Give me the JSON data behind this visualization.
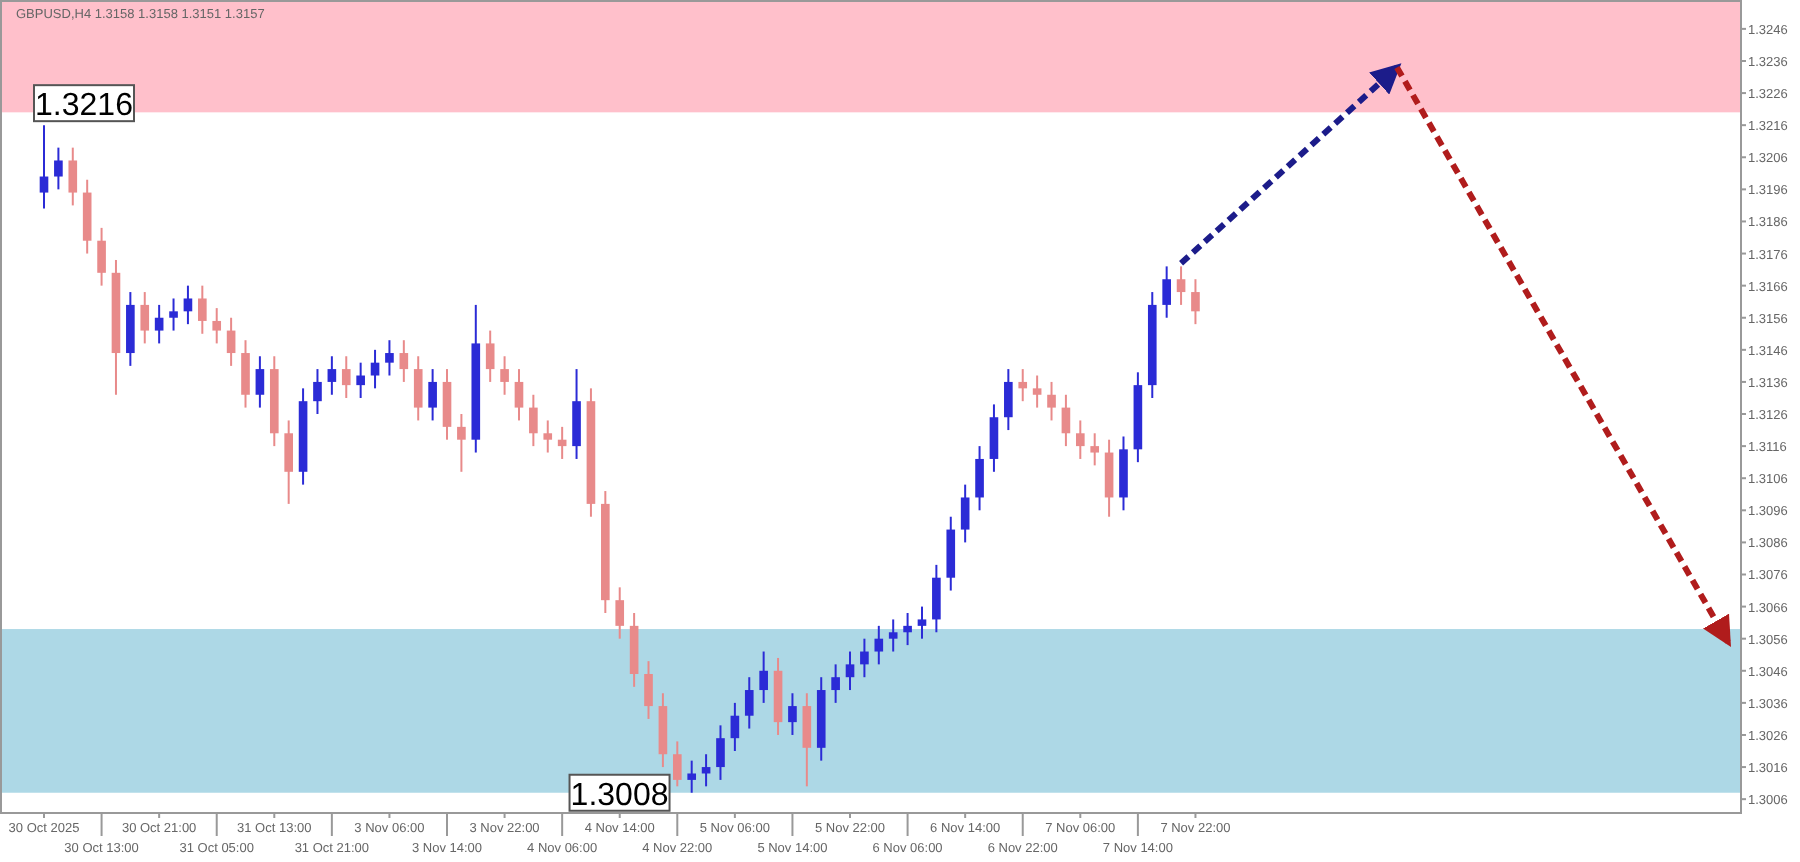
{
  "chart_data": {
    "type": "candlestick",
    "title": "GBPUSD,H4 1.3158 1.3158 1.3151 1.3157",
    "categories": [
      "30 Oct 2025",
      null,
      null,
      null,
      "30 Oct 13:00",
      null,
      null,
      null,
      "30 Oct 21:00",
      null,
      null,
      null,
      "31 Oct 05:00",
      null,
      null,
      null,
      "31 Oct 13:00",
      null,
      null,
      null,
      "31 Oct 21:00",
      null,
      null,
      null,
      "3 Nov 06:00",
      null,
      null,
      null,
      "3 Nov 14:00",
      null,
      null,
      null,
      "3 Nov 22:00",
      null,
      null,
      null,
      "4 Nov 06:00",
      null,
      null,
      null,
      "4 Nov 14:00",
      null,
      null,
      null,
      "4 Nov 22:00",
      null,
      null,
      null,
      "5 Nov 06:00",
      null,
      null,
      null,
      "5 Nov 14:00",
      null,
      null,
      null,
      "5 Nov 22:00",
      null,
      null,
      null,
      "6 Nov 06:00",
      null,
      null,
      null,
      "6 Nov 14:00",
      null,
      null,
      null,
      "6 Nov 22:00",
      null,
      null,
      null,
      "7 Nov 06:00",
      null,
      null,
      null,
      "7 Nov 14:00",
      null,
      null,
      null,
      "7 Nov 22:00",
      null,
      null,
      null,
      null,
      null,
      null,
      null,
      null,
      null,
      null,
      null,
      null,
      null,
      null,
      null,
      null,
      null,
      null,
      null,
      null,
      null,
      null,
      null,
      null,
      null,
      null,
      null,
      null,
      null,
      null,
      null,
      null,
      null,
      null,
      null,
      null,
      null
    ],
    "ohlc": [
      [
        1.3195,
        1.3216,
        1.319,
        1.32
      ],
      [
        1.32,
        1.3209,
        1.3196,
        1.3205
      ],
      [
        1.3205,
        1.3209,
        1.3191,
        1.3195
      ],
      [
        1.3195,
        1.3199,
        1.3176,
        1.318
      ],
      [
        1.318,
        1.3184,
        1.3166,
        1.317
      ],
      [
        1.317,
        1.3174,
        1.3132,
        1.3145
      ],
      [
        1.3145,
        1.3164,
        1.3141,
        1.316
      ],
      [
        1.316,
        1.3164,
        1.3148,
        1.3152
      ],
      [
        1.3152,
        1.316,
        1.3148,
        1.3156
      ],
      [
        1.3156,
        1.3162,
        1.3152,
        1.3158
      ],
      [
        1.3158,
        1.3166,
        1.3154,
        1.3162
      ],
      [
        1.3162,
        1.3166,
        1.3151,
        1.3155
      ],
      [
        1.3155,
        1.3159,
        1.3148,
        1.3152
      ],
      [
        1.3152,
        1.3156,
        1.3141,
        1.3145
      ],
      [
        1.3145,
        1.3149,
        1.3128,
        1.3132
      ],
      [
        1.3132,
        1.3144,
        1.3128,
        1.314
      ],
      [
        1.314,
        1.3144,
        1.3116,
        1.312
      ],
      [
        1.312,
        1.3124,
        1.3098,
        1.3108
      ],
      [
        1.3108,
        1.3134,
        1.3104,
        1.313
      ],
      [
        1.313,
        1.314,
        1.3126,
        1.3136
      ],
      [
        1.3136,
        1.3144,
        1.3132,
        1.314
      ],
      [
        1.314,
        1.3144,
        1.3131,
        1.3135
      ],
      [
        1.3135,
        1.3142,
        1.3131,
        1.3138
      ],
      [
        1.3138,
        1.3146,
        1.3134,
        1.3142
      ],
      [
        1.3142,
        1.3149,
        1.3138,
        1.3145
      ],
      [
        1.3145,
        1.3149,
        1.3136,
        1.314
      ],
      [
        1.314,
        1.3144,
        1.3124,
        1.3128
      ],
      [
        1.3128,
        1.314,
        1.3124,
        1.3136
      ],
      [
        1.3136,
        1.314,
        1.3118,
        1.3122
      ],
      [
        1.3122,
        1.3126,
        1.3108,
        1.3118
      ],
      [
        1.3118,
        1.316,
        1.3114,
        1.3148
      ],
      [
        1.3148,
        1.3152,
        1.3136,
        1.314
      ],
      [
        1.314,
        1.3144,
        1.3132,
        1.3136
      ],
      [
        1.3136,
        1.314,
        1.3124,
        1.3128
      ],
      [
        1.3128,
        1.3132,
        1.3116,
        1.312
      ],
      [
        1.312,
        1.3124,
        1.3114,
        1.3118
      ],
      [
        1.3118,
        1.3122,
        1.3112,
        1.3116
      ],
      [
        1.3116,
        1.314,
        1.3112,
        1.313
      ],
      [
        1.313,
        1.3134,
        1.3094,
        1.3098
      ],
      [
        1.3098,
        1.3102,
        1.3064,
        1.3068
      ],
      [
        1.3068,
        1.3072,
        1.3056,
        1.306
      ],
      [
        1.306,
        1.3064,
        1.3041,
        1.3045
      ],
      [
        1.3045,
        1.3049,
        1.3031,
        1.3035
      ],
      [
        1.3035,
        1.3039,
        1.3016,
        1.302
      ],
      [
        1.302,
        1.3024,
        1.301,
        1.3012
      ],
      [
        1.3012,
        1.3018,
        1.3008,
        1.3014
      ],
      [
        1.3014,
        1.302,
        1.301,
        1.3016
      ],
      [
        1.3016,
        1.3029,
        1.3012,
        1.3025
      ],
      [
        1.3025,
        1.3036,
        1.3021,
        1.3032
      ],
      [
        1.3032,
        1.3044,
        1.3028,
        1.304
      ],
      [
        1.304,
        1.3052,
        1.3036,
        1.3046
      ],
      [
        1.3046,
        1.305,
        1.3026,
        1.303
      ],
      [
        1.303,
        1.3039,
        1.3026,
        1.3035
      ],
      [
        1.3035,
        1.3039,
        1.301,
        1.3022
      ],
      [
        1.3022,
        1.3044,
        1.3018,
        1.304
      ],
      [
        1.304,
        1.3048,
        1.3036,
        1.3044
      ],
      [
        1.3044,
        1.3052,
        1.304,
        1.3048
      ],
      [
        1.3048,
        1.3056,
        1.3044,
        1.3052
      ],
      [
        1.3052,
        1.306,
        1.3048,
        1.3056
      ],
      [
        1.3056,
        1.3062,
        1.3052,
        1.3058
      ],
      [
        1.3058,
        1.3064,
        1.3054,
        1.306
      ],
      [
        1.306,
        1.3066,
        1.3056,
        1.3062
      ],
      [
        1.3062,
        1.3079,
        1.3058,
        1.3075
      ],
      [
        1.3075,
        1.3094,
        1.3071,
        1.309
      ],
      [
        1.309,
        1.3104,
        1.3086,
        1.31
      ],
      [
        1.31,
        1.3116,
        1.3096,
        1.3112
      ],
      [
        1.3112,
        1.3129,
        1.3108,
        1.3125
      ],
      [
        1.3125,
        1.314,
        1.3121,
        1.3136
      ],
      [
        1.3136,
        1.314,
        1.313,
        1.3134
      ],
      [
        1.3134,
        1.3138,
        1.3128,
        1.3132
      ],
      [
        1.3132,
        1.3136,
        1.3124,
        1.3128
      ],
      [
        1.3128,
        1.3132,
        1.3116,
        1.312
      ],
      [
        1.312,
        1.3124,
        1.3112,
        1.3116
      ],
      [
        1.3116,
        1.312,
        1.311,
        1.3114
      ],
      [
        1.3114,
        1.3118,
        1.3094,
        1.31
      ],
      [
        1.31,
        1.3119,
        1.3096,
        1.3115
      ],
      [
        1.3115,
        1.3139,
        1.3111,
        1.3135
      ],
      [
        1.3135,
        1.3164,
        1.3131,
        1.316
      ],
      [
        1.316,
        1.3172,
        1.3156,
        1.3168
      ],
      [
        1.3168,
        1.3172,
        1.316,
        1.3164
      ],
      [
        1.3164,
        1.3168,
        1.3154,
        1.3158
      ],
      null,
      null,
      null,
      null,
      null,
      null,
      null,
      null,
      null,
      null,
      null,
      null,
      null,
      null,
      null,
      null,
      null,
      null,
      null,
      null,
      null,
      null,
      null,
      null,
      null,
      null,
      null,
      null,
      null,
      null,
      null,
      null,
      null,
      null,
      null,
      null,
      null
    ],
    "colors": [
      "#2b2bd6",
      "#2b2bd6",
      "#e88a8a",
      "#e88a8a",
      "#e88a8a",
      "#e88a8a",
      "#2b2bd6",
      "#e88a8a",
      "#2b2bd6",
      "#2b2bd6",
      "#2b2bd6",
      "#e88a8a",
      "#e88a8a",
      "#e88a8a",
      "#e88a8a",
      "#2b2bd6",
      "#e88a8a",
      "#e88a8a",
      "#2b2bd6",
      "#2b2bd6",
      "#2b2bd6",
      "#e88a8a",
      "#2b2bd6",
      "#2b2bd6",
      "#2b2bd6",
      "#e88a8a",
      "#e88a8a",
      "#2b2bd6",
      "#e88a8a",
      "#e88a8a",
      "#2b2bd6",
      "#e88a8a",
      "#e88a8a",
      "#e88a8a",
      "#e88a8a",
      "#e88a8a",
      "#e88a8a",
      "#2b2bd6",
      "#e88a8a",
      "#e88a8a",
      "#e88a8a",
      "#e88a8a",
      "#e88a8a",
      "#e88a8a",
      "#e88a8a",
      "#2b2bd6",
      "#2b2bd6",
      "#2b2bd6",
      "#2b2bd6",
      "#2b2bd6",
      "#2b2bd6",
      "#e88a8a",
      "#2b2bd6",
      "#e88a8a",
      "#2b2bd6",
      "#2b2bd6",
      "#2b2bd6",
      "#2b2bd6",
      "#2b2bd6",
      "#2b2bd6",
      "#2b2bd6",
      "#2b2bd6",
      "#2b2bd6",
      "#2b2bd6",
      "#2b2bd6",
      "#2b2bd6",
      "#2b2bd6",
      "#2b2bd6",
      "#e88a8a",
      "#e88a8a",
      "#e88a8a",
      "#e88a8a",
      "#e88a8a",
      "#e88a8a",
      "#e88a8a",
      "#2b2bd6",
      "#2b2bd6",
      "#2b2bd6",
      "#2b2bd6",
      "#e88a8a",
      "#e88a8a",
      null,
      null,
      null,
      null,
      null,
      null,
      null,
      null,
      null,
      null,
      null,
      null,
      null,
      null,
      null,
      null,
      null,
      null,
      null,
      null,
      null,
      null,
      null,
      null,
      null,
      null,
      null,
      null,
      null,
      null,
      null,
      null,
      null,
      null,
      null,
      null,
      null
    ],
    "series": [
      {
        "type": "line",
        "color": "#1c1c8a",
        "line_style": "dashed",
        "values": [
          null,
          null,
          null,
          null,
          null,
          null,
          null,
          null,
          null,
          null,
          null,
          null,
          null,
          null,
          null,
          null,
          null,
          null,
          null,
          null,
          null,
          null,
          null,
          null,
          null,
          null,
          null,
          null,
          null,
          null,
          null,
          null,
          null,
          null,
          null,
          null,
          null,
          null,
          null,
          null,
          null,
          null,
          null,
          null,
          null,
          null,
          null,
          null,
          null,
          null,
          null,
          null,
          null,
          null,
          null,
          null,
          null,
          null,
          null,
          null,
          null,
          null,
          null,
          null,
          null,
          null,
          null,
          null,
          null,
          null,
          null,
          null,
          null,
          null,
          null,
          null,
          null,
          null,
          null,
          1.3173,
          null,
          null,
          null,
          null,
          null,
          null,
          null,
          null,
          null,
          null,
          null,
          null,
          null,
          null,
          1.3234,
          null,
          null,
          null,
          null,
          null,
          null,
          null,
          null,
          null,
          null,
          null,
          null,
          null,
          null,
          null,
          null,
          null,
          null,
          null,
          null,
          null,
          null,
          null
        ]
      },
      {
        "type": "line",
        "color": "#b01c1c",
        "line_style": "dashed",
        "values": [
          null,
          null,
          null,
          null,
          null,
          null,
          null,
          null,
          null,
          null,
          null,
          null,
          null,
          null,
          null,
          null,
          null,
          null,
          null,
          null,
          null,
          null,
          null,
          null,
          null,
          null,
          null,
          null,
          null,
          null,
          null,
          null,
          null,
          null,
          null,
          null,
          null,
          null,
          null,
          null,
          null,
          null,
          null,
          null,
          null,
          null,
          null,
          null,
          null,
          null,
          null,
          null,
          null,
          null,
          null,
          null,
          null,
          null,
          null,
          null,
          null,
          null,
          null,
          null,
          null,
          null,
          null,
          null,
          null,
          null,
          null,
          null,
          null,
          null,
          null,
          null,
          null,
          null,
          null,
          null,
          null,
          null,
          null,
          null,
          null,
          null,
          null,
          null,
          null,
          null,
          null,
          null,
          null,
          null,
          1.3234,
          null,
          null,
          null,
          null,
          null,
          null,
          null,
          null,
          null,
          null,
          null,
          null,
          null,
          null,
          null,
          null,
          null,
          null,
          null,
          null,
          null,
          null,
          1.3055
        ]
      }
    ],
    "ylim": [
      1.3002,
      1.3255
    ],
    "yticks": [
      1.3006,
      1.3016,
      1.3026,
      1.3036,
      1.3046,
      1.3056,
      1.3066,
      1.3076,
      1.3086,
      1.3096,
      1.3106,
      1.3116,
      1.3126,
      1.3136,
      1.3146,
      1.3156,
      1.3166,
      1.3176,
      1.3186,
      1.3196,
      1.3206,
      1.3216,
      1.3226,
      1.3236,
      1.3246
    ],
    "bands": [
      {
        "axis": "y",
        "from": 1.322,
        "to": 1.3255,
        "color": "#ffc0cb"
      },
      {
        "axis": "y",
        "from": 1.3008,
        "to": 1.3059,
        "color": "#add8e6"
      }
    ],
    "annotations": [
      {
        "text": "1.3216",
        "x": "30 Oct 2025",
        "y": 1.3216
      },
      {
        "text": "1.3008",
        "y": 1.3008
      }
    ],
    "grid": false
  }
}
